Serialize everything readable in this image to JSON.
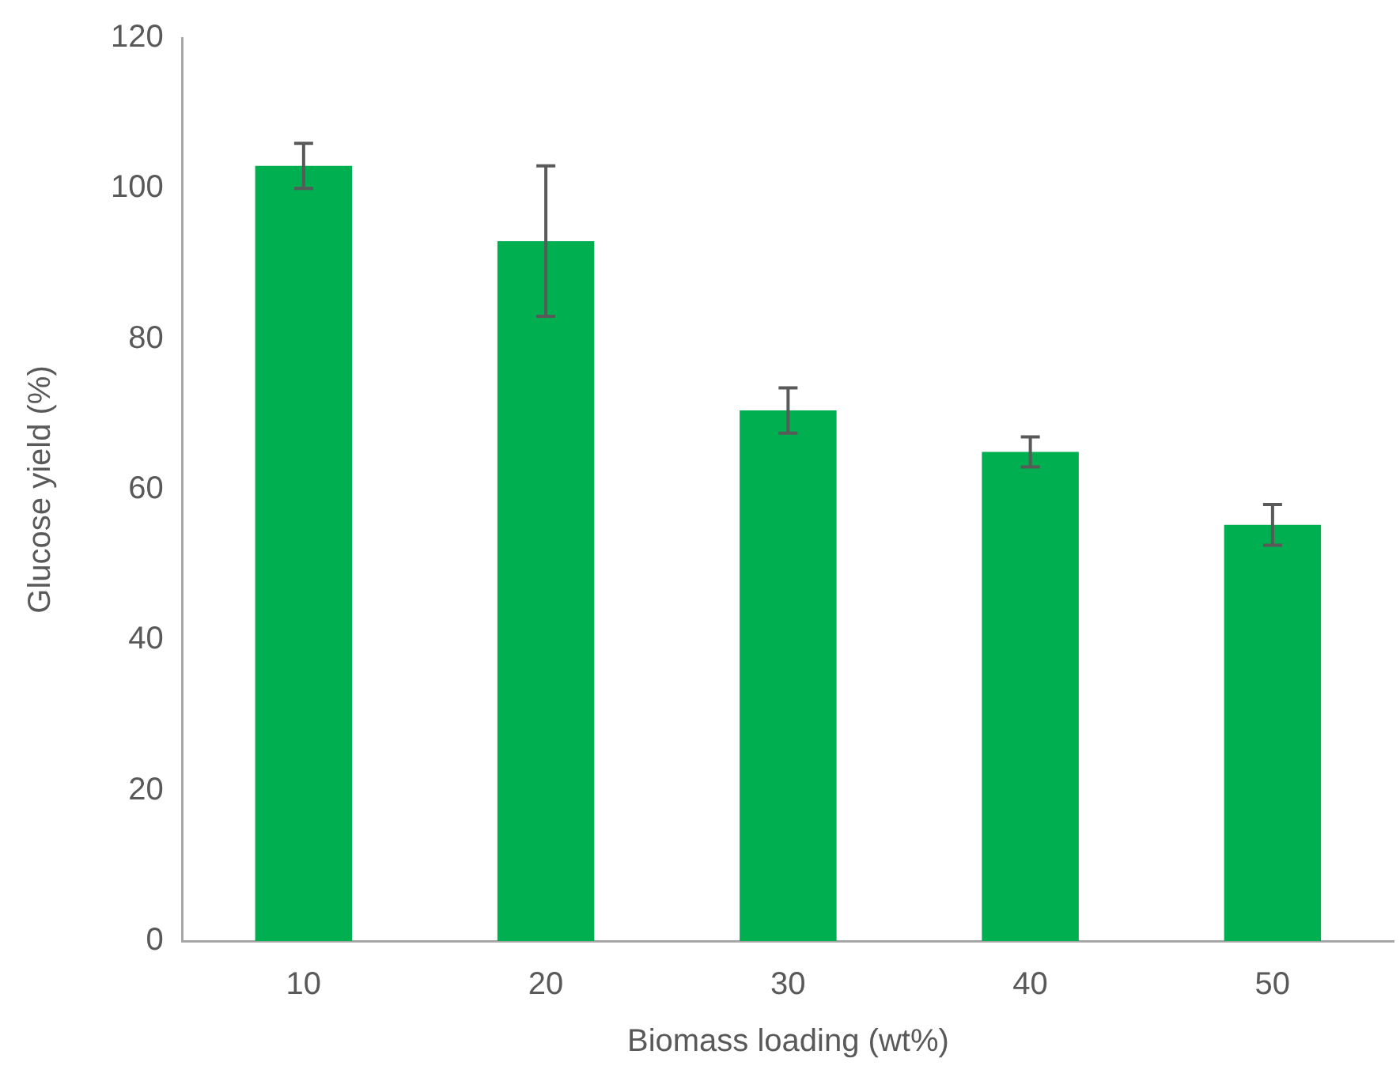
{
  "chart_data": {
    "type": "bar",
    "xlabel": "Biomass loading (wt%)",
    "ylabel": "Glucose yield (%)",
    "categories": [
      "10",
      "20",
      "30",
      "40",
      "50"
    ],
    "values": [
      103,
      93,
      70.5,
      65,
      55.3
    ],
    "errors": [
      3,
      10,
      3,
      2,
      2.7
    ],
    "color": "#00b050",
    "ylim": [
      0,
      120
    ],
    "yticks": [
      0,
      20,
      40,
      60,
      80,
      100,
      120
    ],
    "grid": false,
    "legend": false
  }
}
